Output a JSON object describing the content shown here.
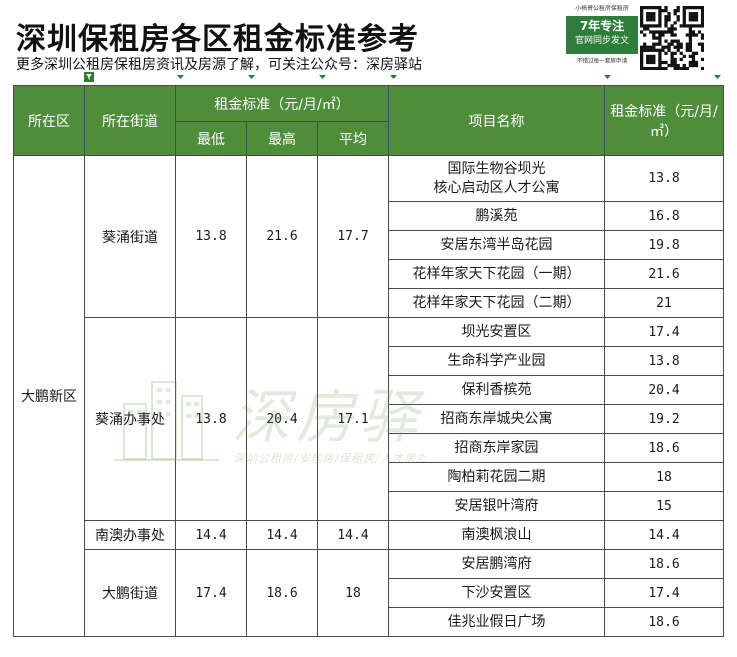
{
  "header": {
    "title": "深圳保租房各区租金标准参考",
    "subtitle": "更多深圳公租房保租房资讯及房源了解，可关注公众号：深房驿站"
  },
  "promo": {
    "top": "小杨哥公租房保租房",
    "line1": "7年专注",
    "line2": "官网同步发文",
    "bottom": "不错过每一套房申请"
  },
  "watermark": {
    "main": "深房驿",
    "sub": "深圳公租房/安居房/保租房/人才房た"
  },
  "table": {
    "headers": {
      "district": "所在区",
      "street": "所在街道",
      "rent_group": "租金标准（元/月/㎡）",
      "min": "最低",
      "max": "最高",
      "avg": "平均",
      "project": "项目名称",
      "rent": "租金标准（元/月/㎡）"
    },
    "district": "大鹏新区",
    "streets": [
      {
        "name": "葵涌街道",
        "min": "13.8",
        "max": "21.6",
        "avg": "17.7",
        "projects": [
          {
            "name": "国际生物谷坝光\n核心启动区人才公寓",
            "rent": "13.8"
          },
          {
            "name": "鹏溪苑",
            "rent": "16.8"
          },
          {
            "name": "安居东湾半岛花园",
            "rent": "19.8"
          },
          {
            "name": "花样年家天下花园（一期）",
            "rent": "21.6"
          },
          {
            "name": "花样年家天下花园（二期）",
            "rent": "21"
          }
        ]
      },
      {
        "name": "葵涌办事处",
        "min": "13.8",
        "max": "20.4",
        "avg": "17.1",
        "projects": [
          {
            "name": "坝光安置区",
            "rent": "17.4"
          },
          {
            "name": "生命科学产业园",
            "rent": "13.8"
          },
          {
            "name": "保利香槟苑",
            "rent": "20.4"
          },
          {
            "name": "招商东岸城央公寓",
            "rent": "19.2"
          },
          {
            "name": "招商东岸家园",
            "rent": "18.6"
          },
          {
            "name": "陶柏莉花园二期",
            "rent": "18"
          },
          {
            "name": "安居银叶湾府",
            "rent": "15"
          }
        ]
      },
      {
        "name": "南澳办事处",
        "min": "14.4",
        "max": "14.4",
        "avg": "14.4",
        "projects": [
          {
            "name": "南澳枫浪山",
            "rent": "14.4"
          }
        ]
      },
      {
        "name": "大鹏街道",
        "min": "17.4",
        "max": "18.6",
        "avg": "18",
        "projects": [
          {
            "name": "安居鹏湾府",
            "rent": "18.6"
          },
          {
            "name": "下沙安置区",
            "rent": "17.4"
          },
          {
            "name": "佳兆业假日广场",
            "rent": "18.6"
          }
        ]
      }
    ]
  },
  "colors": {
    "header_bg": "#4e8e3a",
    "promo_bg": "#2f7d3a",
    "filter_icon": "#2e7d32"
  }
}
